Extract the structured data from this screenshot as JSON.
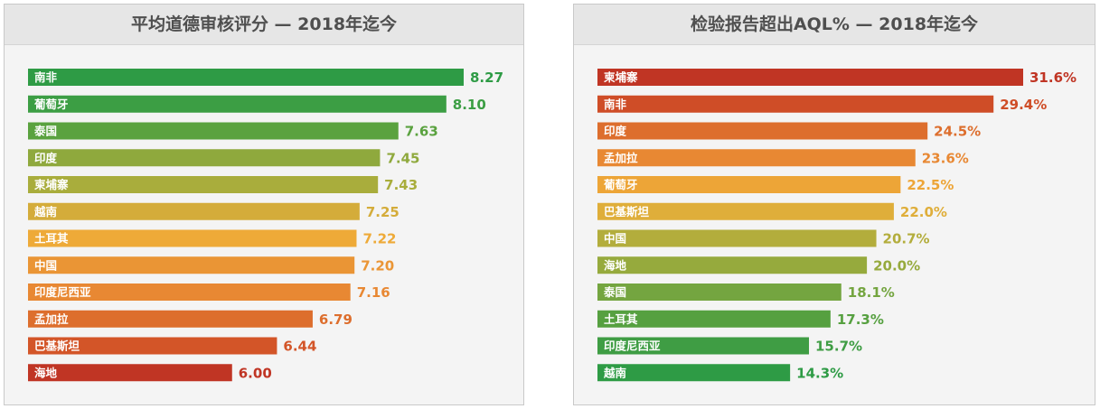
{
  "chart_data": [
    {
      "type": "bar",
      "orientation": "horizontal",
      "title": "平均道德审核评分 — 2018年迄今",
      "categories": [
        "南非",
        "葡萄牙",
        "泰国",
        "印度",
        "柬埔寨",
        "越南",
        "土耳其",
        "中国",
        "印度尼西亚",
        "孟加拉",
        "巴基斯坦",
        "海地"
      ],
      "values": [
        8.27,
        8.1,
        7.63,
        7.45,
        7.43,
        7.25,
        7.22,
        7.2,
        7.16,
        6.79,
        6.44,
        6.0
      ],
      "value_labels": [
        "8.27",
        "8.10",
        "7.63",
        "7.45",
        "7.43",
        "7.25",
        "7.22",
        "7.20",
        "7.16",
        "6.79",
        "6.44",
        "6.00"
      ],
      "colors": [
        "#2e9b45",
        "#3c9e44",
        "#5aa23f",
        "#8fa93d",
        "#a9ad3c",
        "#d4ac3a",
        "#eeaa38",
        "#ea9535",
        "#e88833",
        "#dd6e2d",
        "#d35528",
        "#c03524"
      ],
      "xlim": [
        4.0,
        8.27
      ],
      "grid": false,
      "legend": "none"
    },
    {
      "type": "bar",
      "orientation": "horizontal",
      "title": "检验报告超出AQL% — 2018年迄今",
      "categories": [
        "柬埔寨",
        "南非",
        "印度",
        "孟加拉",
        "葡萄牙",
        "巴基斯坦",
        "中国",
        "海地",
        "泰国",
        "土耳其",
        "印度尼西亚",
        "越南"
      ],
      "values": [
        31.6,
        29.4,
        24.5,
        23.6,
        22.5,
        22.0,
        20.7,
        20.0,
        18.1,
        17.3,
        15.7,
        14.3
      ],
      "value_labels": [
        "31.6%",
        "29.4%",
        "24.5%",
        "23.6%",
        "22.5%",
        "22.0%",
        "20.7%",
        "20.0%",
        "18.1%",
        "17.3%",
        "15.7%",
        "14.3%"
      ],
      "colors": [
        "#c03524",
        "#cf4d27",
        "#dd6e2d",
        "#e88833",
        "#eda537",
        "#dfae3a",
        "#b3ad3c",
        "#96aa3d",
        "#74a540",
        "#56a040",
        "#3f9d44",
        "#2e9b45"
      ],
      "xlim": [
        0,
        31.6
      ],
      "grid": false,
      "legend": "none"
    }
  ]
}
